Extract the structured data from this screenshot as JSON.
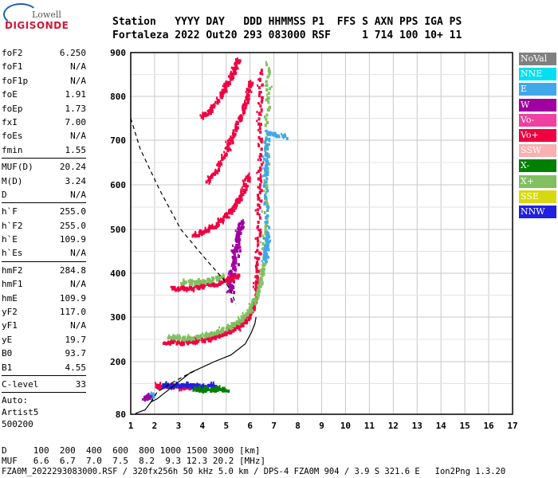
{
  "logo": {
    "top": "Lowell",
    "bottom": "DIGISONDE"
  },
  "header": {
    "line1": "Station   YYYY DAY   DDD HHMMSS P1  FFS S AXN PPS IGA PS",
    "line2": "Fortaleza 2022 Out20 293 083000 RSF     1 714 100 10+ 11"
  },
  "params": {
    "group1": [
      {
        "k": "foF2",
        "v": "6.250"
      },
      {
        "k": "foF1",
        "v": "N/A"
      },
      {
        "k": "foF1p",
        "v": "N/A"
      },
      {
        "k": "foE",
        "v": "1.91"
      },
      {
        "k": "foEp",
        "v": "1.73"
      },
      {
        "k": "fxI",
        "v": "7.00"
      },
      {
        "k": "foEs",
        "v": "N/A"
      },
      {
        "k": "fmin",
        "v": "1.55"
      }
    ],
    "group2": [
      {
        "k": "MUF(D)",
        "v": "20.24"
      },
      {
        "k": "M(D)",
        "v": "3.24"
      },
      {
        "k": "D",
        "v": "N/A"
      }
    ],
    "group3": [
      {
        "k": "h`F",
        "v": "255.0"
      },
      {
        "k": "h`F2",
        "v": "255.0"
      },
      {
        "k": "h`E",
        "v": "109.9"
      },
      {
        "k": "h`Es",
        "v": "N/A"
      }
    ],
    "group4": [
      {
        "k": "hmF2",
        "v": "284.8"
      },
      {
        "k": "hmF1",
        "v": "N/A"
      },
      {
        "k": "hmE",
        "v": "109.9"
      },
      {
        "k": "yF2",
        "v": "117.0"
      },
      {
        "k": "yF1",
        "v": "N/A"
      },
      {
        "k": "yE",
        "v": "19.7"
      },
      {
        "k": "B0",
        "v": "93.7"
      },
      {
        "k": "B1",
        "v": "4.55"
      }
    ],
    "group5": [
      {
        "k": "C-level",
        "v": "33"
      }
    ],
    "auto": [
      "Auto:",
      "Artist5",
      "500200"
    ]
  },
  "legend": [
    {
      "label": "NoVal",
      "color": "#808080"
    },
    {
      "label": "NNE",
      "color": "#00e0f0"
    },
    {
      "label": "E",
      "color": "#40a8e8"
    },
    {
      "label": "W",
      "color": "#a000a0"
    },
    {
      "label": "Vo-",
      "color": "#f040a0"
    },
    {
      "label": "Vo+",
      "color": "#f00040"
    },
    {
      "label": "SSW",
      "color": "#f8b0b0"
    },
    {
      "label": "X-",
      "color": "#008000"
    },
    {
      "label": "X+",
      "color": "#80c060"
    },
    {
      "label": "SSE",
      "color": "#d8d810"
    },
    {
      "label": "NNW",
      "color": "#2020e0"
    }
  ],
  "chart_data": {
    "type": "scatter",
    "xlim": [
      1,
      17
    ],
    "ylim": [
      80,
      900
    ],
    "xticks": [
      "1",
      "2",
      "3",
      "4",
      "5",
      "6",
      "7",
      "8",
      "9",
      "10",
      "11",
      "12",
      "13",
      "14",
      "15",
      "16",
      "17"
    ],
    "yticks": [
      "80",
      "200",
      "300",
      "400",
      "500",
      "600",
      "700",
      "800",
      "900"
    ],
    "grid": true,
    "profile_solid": [
      [
        1.2,
        82
      ],
      [
        1.6,
        90
      ],
      [
        1.85,
        108
      ],
      [
        2.1,
        115
      ],
      [
        3.5,
        175
      ],
      [
        4.5,
        200
      ],
      [
        5.2,
        215
      ],
      [
        5.8,
        240
      ],
      [
        6.05,
        265
      ],
      [
        6.2,
        285
      ],
      [
        6.25,
        300
      ]
    ],
    "profile_dashed_low": [
      [
        1.85,
        108
      ],
      [
        2.1,
        130
      ],
      [
        2.6,
        148
      ],
      [
        3.2,
        166
      ],
      [
        3.8,
        182
      ]
    ],
    "profile_dashed_top": [
      [
        1.0,
        750
      ],
      [
        1.4,
        680
      ],
      [
        2.2,
        590
      ],
      [
        3.1,
        500
      ],
      [
        4.1,
        435
      ],
      [
        4.9,
        385
      ],
      [
        5.2,
        360
      ],
      [
        5.4,
        330
      ]
    ],
    "traces": [
      {
        "color": "#f00040",
        "points": [
          [
            2.4,
            248
          ],
          [
            3.0,
            245
          ],
          [
            3.6,
            248
          ],
          [
            4.2,
            253
          ],
          [
            4.8,
            262
          ],
          [
            5.3,
            275
          ],
          [
            5.7,
            290
          ],
          [
            6.0,
            312
          ],
          [
            6.15,
            340
          ],
          [
            6.25,
            380
          ],
          [
            6.32,
            450
          ],
          [
            6.35,
            560
          ],
          [
            6.38,
            650
          ],
          [
            6.4,
            760
          ],
          [
            6.42,
            870
          ]
        ]
      },
      {
        "color": "#80c060",
        "points": [
          [
            2.6,
            258
          ],
          [
            3.2,
            255
          ],
          [
            3.8,
            258
          ],
          [
            4.4,
            266
          ],
          [
            5.0,
            278
          ],
          [
            5.5,
            293
          ],
          [
            5.9,
            315
          ],
          [
            6.2,
            345
          ],
          [
            6.4,
            385
          ],
          [
            6.55,
            440
          ],
          [
            6.62,
            520
          ],
          [
            6.66,
            650
          ],
          [
            6.7,
            780
          ],
          [
            6.72,
            880
          ]
        ]
      },
      {
        "color": "#40a8e8",
        "points": [
          [
            6.55,
            430
          ],
          [
            6.65,
            460
          ],
          [
            6.7,
            490
          ],
          [
            6.6,
            620
          ],
          [
            6.62,
            660
          ],
          [
            6.7,
            720
          ],
          [
            7.5,
            710
          ]
        ]
      },
      {
        "color": "#a000a0",
        "points": [
          [
            5.1,
            360
          ],
          [
            5.2,
            400
          ],
          [
            5.3,
            440
          ],
          [
            5.4,
            470
          ],
          [
            5.5,
            500
          ],
          [
            5.6,
            520
          ],
          [
            5.2,
            330
          ]
        ]
      },
      {
        "color": "#f00040",
        "points": [
          [
            2.7,
            368
          ],
          [
            3.3,
            368
          ],
          [
            3.9,
            372
          ],
          [
            4.5,
            378
          ],
          [
            5.1,
            388
          ],
          [
            5.5,
            398
          ]
        ]
      },
      {
        "color": "#80c060",
        "points": [
          [
            3.1,
            382
          ],
          [
            3.7,
            383
          ],
          [
            4.3,
            388
          ],
          [
            4.9,
            395
          ]
        ]
      },
      {
        "color": "#f00040",
        "points": [
          [
            3.6,
            490
          ],
          [
            4.1,
            498
          ],
          [
            4.6,
            515
          ],
          [
            5.0,
            535
          ],
          [
            5.4,
            560
          ],
          [
            5.7,
            590
          ],
          [
            5.9,
            630
          ]
        ]
      },
      {
        "color": "#f00040",
        "points": [
          [
            4.2,
            610
          ],
          [
            4.6,
            640
          ],
          [
            5.0,
            680
          ],
          [
            5.3,
            720
          ],
          [
            5.6,
            760
          ],
          [
            5.85,
            800
          ],
          [
            6.0,
            840
          ]
        ]
      },
      {
        "color": "#f00040",
        "points": [
          [
            3.9,
            755
          ],
          [
            4.3,
            770
          ],
          [
            4.7,
            800
          ],
          [
            5.0,
            830
          ],
          [
            5.3,
            860
          ],
          [
            5.5,
            890
          ]
        ]
      },
      {
        "color": "#f00040",
        "points": [
          [
            2.0,
            147
          ],
          [
            2.4,
            148
          ],
          [
            2.8,
            146
          ],
          [
            3.4,
            145
          ],
          [
            4.0,
            143
          ]
        ]
      },
      {
        "color": "#2020e0",
        "points": [
          [
            2.3,
            148
          ],
          [
            2.9,
            149
          ],
          [
            3.5,
            148
          ],
          [
            4.1,
            147
          ],
          [
            4.6,
            146
          ]
        ]
      },
      {
        "color": "#008000",
        "points": [
          [
            3.6,
            140
          ],
          [
            4.2,
            140
          ],
          [
            4.6,
            140
          ],
          [
            5.0,
            140
          ]
        ]
      },
      {
        "color": "#40a8e8",
        "points": [
          [
            1.7,
            120
          ],
          [
            1.8,
            124
          ],
          [
            1.9,
            128
          ]
        ]
      },
      {
        "color": "#a000a0",
        "points": [
          [
            1.6,
            120
          ],
          [
            1.75,
            124
          ]
        ]
      }
    ]
  },
  "footer": {
    "line1": "D     100  200  400  600  800 1000 1500 3000 [km]",
    "line2": "MUF   6.6  6.7  7.0  7.5  8.2  9.3 12.3 20.2 [MHz]",
    "line3": "FZA0M_2022293083000.RSF / 320fx256h 50 kHz 5.0 km / DPS-4 FZA0M 904 / 3.9 S 321.6 E   Ion2Png 1.3.20"
  }
}
